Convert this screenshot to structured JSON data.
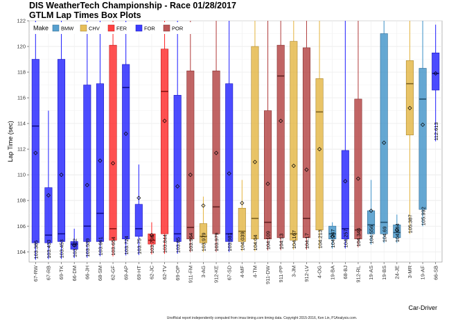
{
  "chart_data": {
    "type": "boxplot",
    "title": "DIS WeatherTech Championship - Race 01/28/2017",
    "subtitle": "GTLM Lap Times Box Plots",
    "xlabel": "Car-Driver",
    "ylabel": "Lap Time (sec)",
    "ylim": [
      103.2,
      122
    ],
    "yticks": [
      104,
      106,
      108,
      110,
      112,
      114,
      116,
      118,
      120,
      122
    ],
    "grid": true,
    "legend": {
      "title": "Make",
      "position": "top-left",
      "entries": [
        {
          "name": "BMW",
          "color": "#3a8fc7"
        },
        {
          "name": "CHV",
          "color": "#e3b33c"
        },
        {
          "name": "FER",
          "color": "#ff2020"
        },
        {
          "name": "FOR",
          "color": "#1a1aff"
        },
        {
          "name": "POR",
          "color": "#b03a3a"
        }
      ]
    },
    "boxes": [
      {
        "label": "67-RW",
        "make": "FOR",
        "q1": 104.7,
        "median": 113.8,
        "q3": 119.0,
        "wlo": 103.38,
        "whi": 122.0,
        "mean": 111.7,
        "median_label": "103.385"
      },
      {
        "label": "67-RB",
        "make": "FOR",
        "q1": 104.7,
        "median": 105.3,
        "q3": 109.0,
        "wlo": 103.43,
        "whi": 115.0,
        "mean": 108.4,
        "median_label": "103.433"
      },
      {
        "label": "69-TK",
        "make": "FOR",
        "q1": 104.8,
        "median": 105.4,
        "q3": 119.0,
        "wlo": 103.45,
        "whi": 122.0,
        "mean": 110.0,
        "median_label": "103.453"
      },
      {
        "label": "66-DM",
        "make": "FOR",
        "q1": 104.2,
        "median": 104.6,
        "q3": 104.8,
        "wlo": 103.52,
        "whi": 105.8,
        "mean": 104.5,
        "median_label": "103.522"
      },
      {
        "label": "66-JH",
        "make": "FOR",
        "q1": 104.8,
        "median": 106.0,
        "q3": 117.0,
        "wlo": 103.54,
        "whi": 122.0,
        "mean": 109.2,
        "median_label": "103.539"
      },
      {
        "label": "68-SM",
        "make": "FOR",
        "q1": 104.8,
        "median": 107.0,
        "q3": 117.1,
        "wlo": 103.66,
        "whi": 122.0,
        "mean": 111.1,
        "median_label": "103.661"
      },
      {
        "label": "62-GF",
        "make": "FER",
        "q1": 104.9,
        "median": 105.8,
        "q3": 120.1,
        "wlo": 103.65,
        "whi": 122.0,
        "mean": 110.9,
        "median_label": "103.654"
      },
      {
        "label": "69-AP",
        "make": "FOR",
        "q1": 105.0,
        "median": 116.8,
        "q3": 118.6,
        "wlo": 103.72,
        "whi": 122.0,
        "mean": 113.2,
        "median_label": "103.724"
      },
      {
        "label": "69-HT",
        "make": "FOR",
        "q1": 105.2,
        "median": 105.8,
        "q3": 107.7,
        "wlo": 103.75,
        "whi": 110.8,
        "mean": 108.2,
        "median_label": "103.75"
      },
      {
        "label": "62-JC",
        "make": "FER",
        "q1": 104.6,
        "median": 104.9,
        "q3": 105.4,
        "wlo": 103.8,
        "whi": 106.3,
        "mean": 105.3,
        "median_label": "103.798"
      },
      {
        "label": "62-TV",
        "make": "FER",
        "q1": 105.4,
        "median": 116.5,
        "q3": 119.8,
        "wlo": 103.84,
        "whi": 122.0,
        "mean": 114.2,
        "median_label": "103.844"
      },
      {
        "label": "69-OP",
        "make": "FOR",
        "q1": 104.8,
        "median": 105.4,
        "q3": 116.2,
        "wlo": 103.85,
        "whi": 122.0,
        "mean": 109.1,
        "median_label": "103.85"
      },
      {
        "label": "911-FM",
        "make": "POR",
        "q1": 105.0,
        "median": 105.9,
        "q3": 118.1,
        "wlo": 103.96,
        "whi": 122.0,
        "mean": 110.0,
        "median_label": "103.964"
      },
      {
        "label": "3-AG",
        "make": "CHV",
        "q1": 104.7,
        "median": 105.2,
        "q3": 106.2,
        "wlo": 103.98,
        "whi": 108.3,
        "mean": 107.6,
        "median_label": "103.979"
      },
      {
        "label": "912-KE",
        "make": "POR",
        "q1": 105.4,
        "median": 107.5,
        "q3": 118.1,
        "wlo": 103.98,
        "whi": 122.0,
        "mean": 111.7,
        "median_label": "103.979"
      },
      {
        "label": "67-SD",
        "make": "FOR",
        "q1": 104.8,
        "median": 105.4,
        "q3": 117.1,
        "wlo": 103.98,
        "whi": 122.0,
        "mean": 110.1,
        "median_label": "103.981"
      },
      {
        "label": "4-MF",
        "make": "CHV",
        "q1": 104.8,
        "median": 105.6,
        "q3": 107.4,
        "wlo": 104.04,
        "whi": 109.6,
        "mean": 107.8,
        "median_label": "104.039"
      },
      {
        "label": "4-TM",
        "make": "CHV",
        "q1": 105.0,
        "median": 106.6,
        "q3": 120.0,
        "wlo": 104.04,
        "whi": 122.0,
        "mean": 111.0,
        "median_label": "104.04"
      },
      {
        "label": "911-DW",
        "make": "POR",
        "q1": 105.0,
        "median": 106.3,
        "q3": 115.0,
        "wlo": 104.11,
        "whi": 122.0,
        "mean": 109.3,
        "median_label": "104.109"
      },
      {
        "label": "911-PP",
        "make": "POR",
        "q1": 105.1,
        "median": 117.7,
        "q3": 120.1,
        "wlo": 104.13,
        "whi": 122.0,
        "mean": 114.2,
        "median_label": "104.13"
      },
      {
        "label": "3-JM",
        "make": "CHV",
        "q1": 104.9,
        "median": 105.4,
        "q3": 120.4,
        "wlo": 104.17,
        "whi": 122.0,
        "mean": 110.7,
        "median_label": "104.167"
      },
      {
        "label": "912-LV",
        "make": "POR",
        "q1": 105.1,
        "median": 106.6,
        "q3": 119.9,
        "wlo": 104.17,
        "whi": 122.0,
        "mean": 110.4,
        "median_label": "104.17"
      },
      {
        "label": "4-OG",
        "make": "CHV",
        "q1": 105.7,
        "median": 114.9,
        "q3": 117.5,
        "wlo": 104.21,
        "whi": 122.0,
        "mean": 112.0,
        "median_label": "104.213"
      },
      {
        "label": "19-BA",
        "make": "BMW",
        "q1": 105.0,
        "median": 105.4,
        "q3": 106.0,
        "wlo": 104.25,
        "whi": 106.3,
        "mean": 105.2,
        "median_label": "104.247"
      },
      {
        "label": "68-BJ",
        "make": "FOR",
        "q1": 105.0,
        "median": 105.8,
        "q3": 111.9,
        "wlo": 104.26,
        "whi": 122.0,
        "mean": 109.5,
        "median_label": "104.257"
      },
      {
        "label": "912-RL",
        "make": "POR",
        "q1": 105.0,
        "median": 105.7,
        "q3": 115.9,
        "wlo": 104.35,
        "whi": 122.0,
        "mean": 109.7,
        "median_label": "104.346"
      },
      {
        "label": "19-AS",
        "make": "BMW",
        "q1": 105.4,
        "median": 106.1,
        "q3": 107.2,
        "wlo": 104.56,
        "whi": 109.6,
        "mean": 107.2,
        "median_label": "104.556"
      },
      {
        "label": "19-BS",
        "make": "BMW",
        "q1": 105.4,
        "median": 106.3,
        "q3": 121.0,
        "wlo": 104.69,
        "whi": 122.0,
        "mean": 112.5,
        "median_label": "104.69"
      },
      {
        "label": "24-JE",
        "make": "BMW",
        "q1": 105.1,
        "median": 105.5,
        "q3": 106.1,
        "wlo": 104.69,
        "whi": 106.9,
        "mean": 105.7,
        "median_label": "104.694"
      },
      {
        "label": "3-MR",
        "make": "CHV",
        "q1": 113.1,
        "median": 117.1,
        "q3": 118.9,
        "wlo": 105.39,
        "whi": 122.0,
        "mean": 115.2,
        "median_label": "105.387"
      },
      {
        "label": "19-AF",
        "make": "BMW",
        "q1": 107.3,
        "median": 115.9,
        "q3": 118.3,
        "wlo": 105.99,
        "whi": 122.0,
        "mean": 113.9,
        "median_label": "105.992"
      },
      {
        "label": "66-SB",
        "make": "FOR",
        "q1": 116.6,
        "median": 117.9,
        "q3": 119.5,
        "wlo": 112.61,
        "whi": 121.7,
        "mean": 117.9,
        "median_label": "112.613"
      }
    ],
    "footer": "Unofficial report independently computed from imsa timing.com timing data. Copyright 2015-2016, Ken Lin, P1Analysis.com."
  }
}
